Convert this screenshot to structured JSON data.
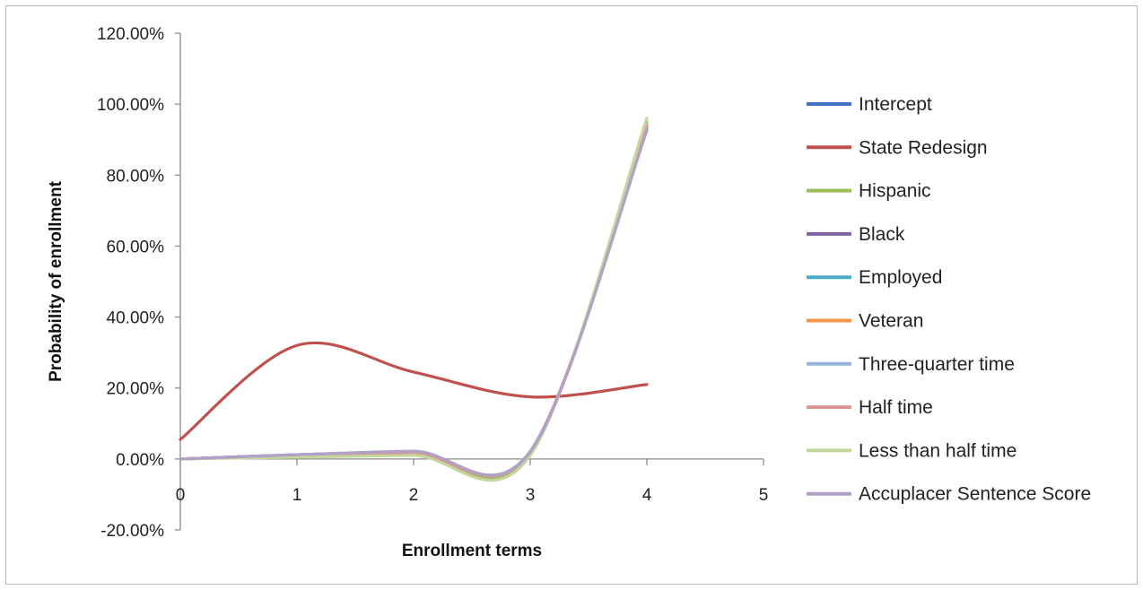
{
  "chart_data": {
    "type": "line",
    "xlabel": "Enrollment terms",
    "ylabel": "Probability of enrollment",
    "xlim": [
      0,
      5
    ],
    "ylim": [
      -0.2,
      1.2
    ],
    "x_ticks": [
      0,
      1,
      2,
      3,
      4,
      5
    ],
    "y_ticks": [
      -0.2,
      0,
      0.2,
      0.4,
      0.6,
      0.8,
      1.0,
      1.2
    ],
    "y_tick_labels": [
      "-20.00%",
      "0.00%",
      "20.00%",
      "40.00%",
      "60.00%",
      "80.00%",
      "100.00%",
      "120.00%"
    ],
    "x_tick_labels": [
      "0",
      "1",
      "2",
      "3",
      "4",
      "5"
    ],
    "grid": false,
    "legend_position": "right",
    "smooth": true,
    "x": [
      0,
      1,
      2,
      3,
      4
    ],
    "series": [
      {
        "name": "Intercept",
        "color": "#4472C4",
        "values": [
          0.0,
          0.01,
          0.02,
          0.02,
          0.93
        ]
      },
      {
        "name": "State Redesign",
        "color": "#C0504D",
        "values": [
          0.055,
          0.32,
          0.245,
          0.175,
          0.21
        ]
      },
      {
        "name": "Hispanic",
        "color": "#9BBB59",
        "values": [
          0.0,
          0.01,
          0.015,
          0.015,
          0.95
        ]
      },
      {
        "name": "Black",
        "color": "#8064A2",
        "values": [
          0.0,
          0.012,
          0.02,
          0.02,
          0.93
        ]
      },
      {
        "name": "Employed",
        "color": "#4BACC6",
        "values": [
          0.0,
          0.01,
          0.02,
          0.02,
          0.935
        ]
      },
      {
        "name": "Veteran",
        "color": "#F79646",
        "values": [
          0.0,
          0.01,
          0.018,
          0.02,
          0.94
        ]
      },
      {
        "name": "Three-quarter time",
        "color": "#95B3D7",
        "values": [
          0.0,
          0.012,
          0.02,
          0.022,
          0.93
        ]
      },
      {
        "name": "Half time",
        "color": "#DA9694",
        "values": [
          0.0,
          0.01,
          0.017,
          0.02,
          0.94
        ]
      },
      {
        "name": "Less than half time",
        "color": "#C3D69B",
        "values": [
          0.0,
          0.005,
          0.01,
          0.01,
          0.96
        ]
      },
      {
        "name": "Accuplacer Sentence Score",
        "color": "#B1A0C7",
        "values": [
          0.0,
          0.012,
          0.022,
          0.02,
          0.925
        ]
      }
    ]
  }
}
